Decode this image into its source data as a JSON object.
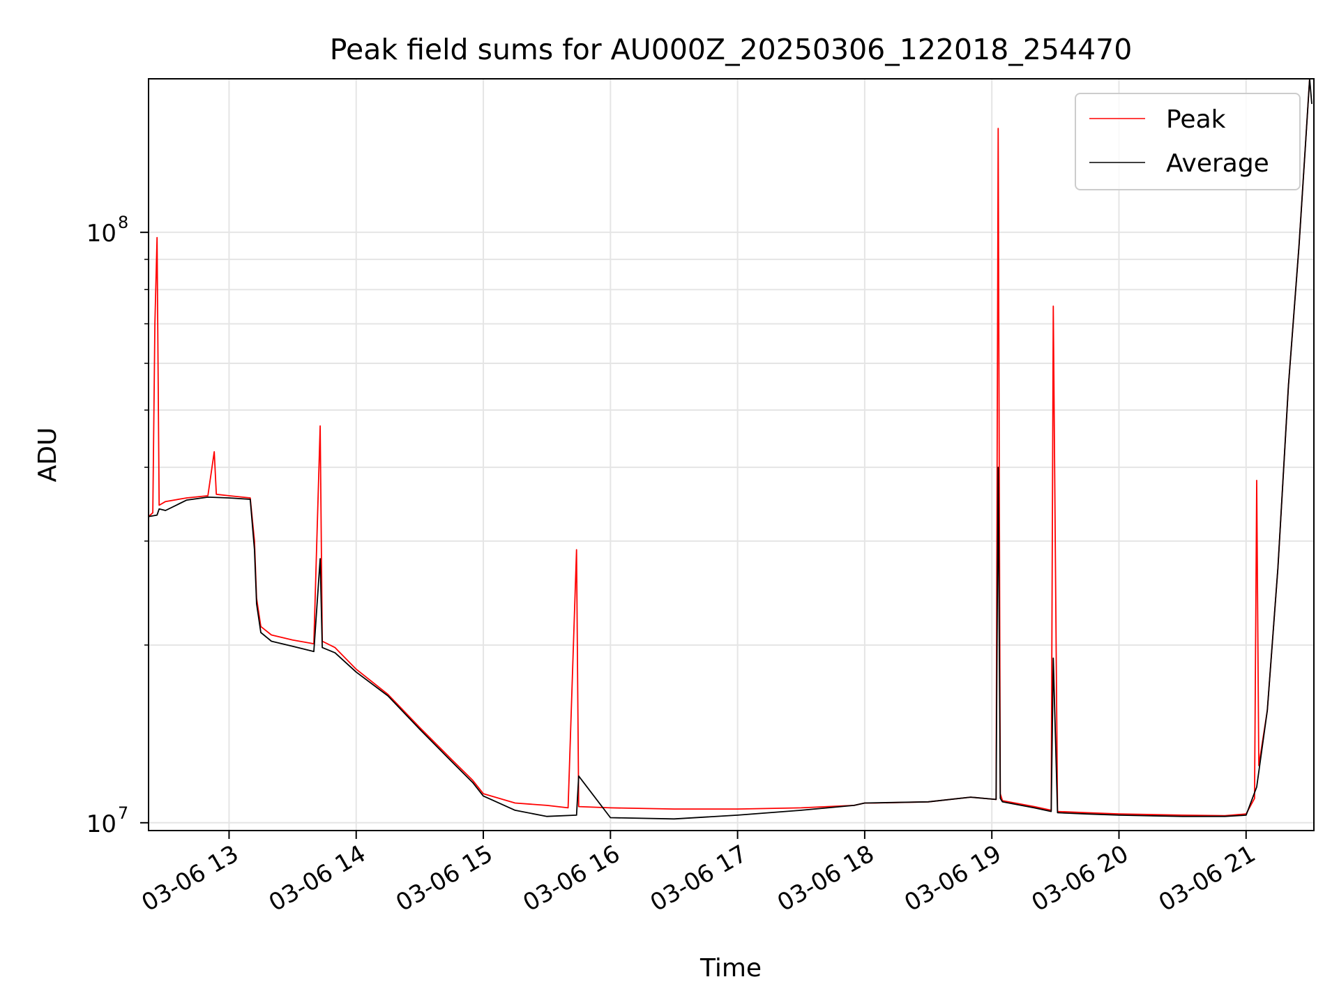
{
  "chart_data": {
    "type": "line",
    "title": "Peak field sums for AU000Z_20250306_122018_254470",
    "xlabel": "Time",
    "ylabel": "ADU",
    "yscale": "log",
    "ylim": [
      9700000,
      182000000
    ],
    "xlim": [
      "2025-03-06 12:22",
      "2025-03-06 21:32"
    ],
    "x_ticks": [
      {
        "t": "2025-03-06 13:00",
        "label": "03-06 13"
      },
      {
        "t": "2025-03-06 14:00",
        "label": "03-06 14"
      },
      {
        "t": "2025-03-06 15:00",
        "label": "03-06 15"
      },
      {
        "t": "2025-03-06 16:00",
        "label": "03-06 16"
      },
      {
        "t": "2025-03-06 17:00",
        "label": "03-06 17"
      },
      {
        "t": "2025-03-06 18:00",
        "label": "03-06 18"
      },
      {
        "t": "2025-03-06 19:00",
        "label": "03-06 19"
      },
      {
        "t": "2025-03-06 20:00",
        "label": "03-06 20"
      },
      {
        "t": "2025-03-06 21:00",
        "label": "03-06 21"
      }
    ],
    "y_ticks": [
      {
        "v": 10000000,
        "base": "10",
        "exp": "7"
      },
      {
        "v": 100000000,
        "base": "10",
        "exp": "8"
      }
    ],
    "grid": true,
    "legend_position": "top-right",
    "series": [
      {
        "name": "Peak",
        "color": "#ff0000",
        "x": [
          "2025-03-06 12:22",
          "2025-03-06 12:24",
          "2025-03-06 12:25",
          "2025-03-06 12:26",
          "2025-03-06 12:27",
          "2025-03-06 12:30",
          "2025-03-06 12:40",
          "2025-03-06 12:50",
          "2025-03-06 12:53",
          "2025-03-06 12:54",
          "2025-03-06 13:00",
          "2025-03-06 13:10",
          "2025-03-06 13:12",
          "2025-03-06 13:13",
          "2025-03-06 13:15",
          "2025-03-06 13:20",
          "2025-03-06 13:30",
          "2025-03-06 13:40",
          "2025-03-06 13:43",
          "2025-03-06 13:44",
          "2025-03-06 13:50",
          "2025-03-06 14:00",
          "2025-03-06 14:15",
          "2025-03-06 14:30",
          "2025-03-06 14:45",
          "2025-03-06 14:55",
          "2025-03-06 15:00",
          "2025-03-06 15:15",
          "2025-03-06 15:30",
          "2025-03-06 15:40",
          "2025-03-06 15:44",
          "2025-03-06 15:45",
          "2025-03-06 16:00",
          "2025-03-06 16:30",
          "2025-03-06 17:00",
          "2025-03-06 17:30",
          "2025-03-06 17:55",
          "2025-03-06 18:00",
          "2025-03-06 18:05",
          "2025-03-06 18:30",
          "2025-03-06 18:50",
          "2025-03-06 19:02",
          "2025-03-06 19:03",
          "2025-03-06 19:04",
          "2025-03-06 19:05",
          "2025-03-06 19:20",
          "2025-03-06 19:28",
          "2025-03-06 19:29",
          "2025-03-06 19:31",
          "2025-03-06 19:45",
          "2025-03-06 20:00",
          "2025-03-06 20:30",
          "2025-03-06 20:50",
          "2025-03-06 21:00",
          "2025-03-06 21:04",
          "2025-03-06 21:05",
          "2025-03-06 21:06",
          "2025-03-06 21:10",
          "2025-03-06 21:15",
          "2025-03-06 21:20",
          "2025-03-06 21:25",
          "2025-03-06 21:28",
          "2025-03-06 21:30"
        ],
        "values": [
          33000000,
          33500000,
          70000000,
          98000000,
          34500000,
          35000000,
          35500000,
          35800000,
          42500000,
          36000000,
          35800000,
          35500000,
          30000000,
          24000000,
          21500000,
          20800000,
          20400000,
          20100000,
          47000000,
          20300000,
          19800000,
          18200000,
          16500000,
          14500000,
          12800000,
          11800000,
          11200000,
          10800000,
          10700000,
          10600000,
          29000000,
          10650000,
          10600000,
          10550000,
          10550000,
          10600000,
          10700000,
          10800000,
          10800000,
          10850000,
          11050000,
          10950000,
          150000000,
          11200000,
          10900000,
          10650000,
          10500000,
          75000000,
          10450000,
          10400000,
          10350000,
          10300000,
          10280000,
          10350000,
          11000000,
          38000000,
          12500000,
          15500000,
          27000000,
          55000000,
          95000000,
          140000000,
          182000000
        ]
      },
      {
        "name": "Average",
        "color": "#000000",
        "x": [
          "2025-03-06 12:22",
          "2025-03-06 12:26",
          "2025-03-06 12:27",
          "2025-03-06 12:30",
          "2025-03-06 12:40",
          "2025-03-06 12:50",
          "2025-03-06 13:00",
          "2025-03-06 13:10",
          "2025-03-06 13:12",
          "2025-03-06 13:13",
          "2025-03-06 13:15",
          "2025-03-06 13:20",
          "2025-03-06 13:30",
          "2025-03-06 13:40",
          "2025-03-06 13:43",
          "2025-03-06 13:44",
          "2025-03-06 13:50",
          "2025-03-06 14:00",
          "2025-03-06 14:15",
          "2025-03-06 14:30",
          "2025-03-06 14:45",
          "2025-03-06 14:55",
          "2025-03-06 15:00",
          "2025-03-06 15:15",
          "2025-03-06 15:30",
          "2025-03-06 15:44",
          "2025-03-06 15:45",
          "2025-03-06 16:00",
          "2025-03-06 16:30",
          "2025-03-06 17:00",
          "2025-03-06 17:30",
          "2025-03-06 17:55",
          "2025-03-06 18:00",
          "2025-03-06 18:30",
          "2025-03-06 18:50",
          "2025-03-06 19:02",
          "2025-03-06 19:03",
          "2025-03-06 19:04",
          "2025-03-06 19:05",
          "2025-03-06 19:20",
          "2025-03-06 19:28",
          "2025-03-06 19:29",
          "2025-03-06 19:31",
          "2025-03-06 19:45",
          "2025-03-06 20:00",
          "2025-03-06 20:30",
          "2025-03-06 20:50",
          "2025-03-06 21:00",
          "2025-03-06 21:05",
          "2025-03-06 21:10",
          "2025-03-06 21:15",
          "2025-03-06 21:20",
          "2025-03-06 21:25",
          "2025-03-06 21:28",
          "2025-03-06 21:30",
          "2025-03-06 21:31"
        ],
        "values": [
          33000000,
          33200000,
          34000000,
          33800000,
          35200000,
          35600000,
          35500000,
          35300000,
          29000000,
          23500000,
          21000000,
          20300000,
          19900000,
          19500000,
          28000000,
          19800000,
          19400000,
          18000000,
          16400000,
          14400000,
          12700000,
          11700000,
          11100000,
          10500000,
          10250000,
          10300000,
          12000000,
          10200000,
          10150000,
          10300000,
          10500000,
          10700000,
          10800000,
          10850000,
          11050000,
          10950000,
          40000000,
          11000000,
          10850000,
          10600000,
          10450000,
          19000000,
          10400000,
          10350000,
          10300000,
          10250000,
          10250000,
          10300000,
          11500000,
          15500000,
          27000000,
          55000000,
          95000000,
          140000000,
          182000000,
          165000000
        ]
      }
    ]
  }
}
